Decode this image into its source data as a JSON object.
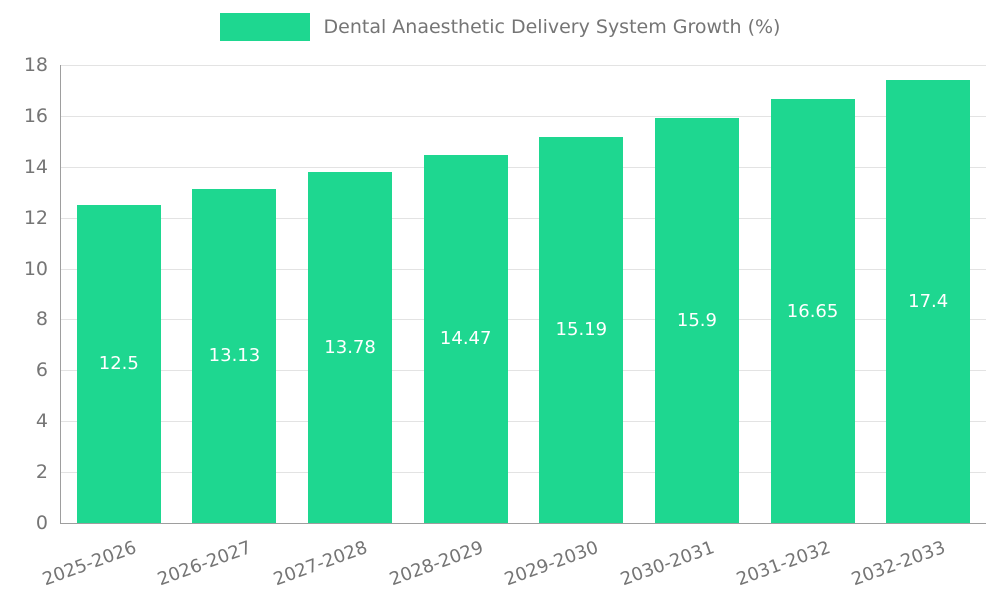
{
  "chart_data": {
    "type": "bar",
    "title": "Dental Anaesthetic Delivery System Growth (%)",
    "legend": {
      "label": "Dental Anaesthetic Delivery System Growth (%)",
      "position": "top"
    },
    "categories": [
      "2025-2026",
      "2026-2027",
      "2027-2028",
      "2028-2029",
      "2029-2030",
      "2030-2031",
      "2031-2032",
      "2032-2033"
    ],
    "values": [
      12.5,
      13.13,
      13.78,
      14.47,
      15.19,
      15.9,
      16.65,
      17.4
    ],
    "value_labels": [
      "12.5",
      "13.13",
      "13.78",
      "14.47",
      "15.19",
      "15.9",
      "16.65",
      "17.4"
    ],
    "xlabel": "",
    "ylabel": "",
    "ylim": [
      0,
      18
    ],
    "yticks": [
      0,
      2,
      4,
      6,
      8,
      10,
      12,
      14,
      16,
      18
    ],
    "grid": true,
    "colors": {
      "bar": "#1ED790",
      "grid": "#e3e3e3",
      "axis": "#9e9e9e",
      "tick_text": "#757575",
      "value_text": "#ffffff",
      "background": "#ffffff"
    }
  }
}
